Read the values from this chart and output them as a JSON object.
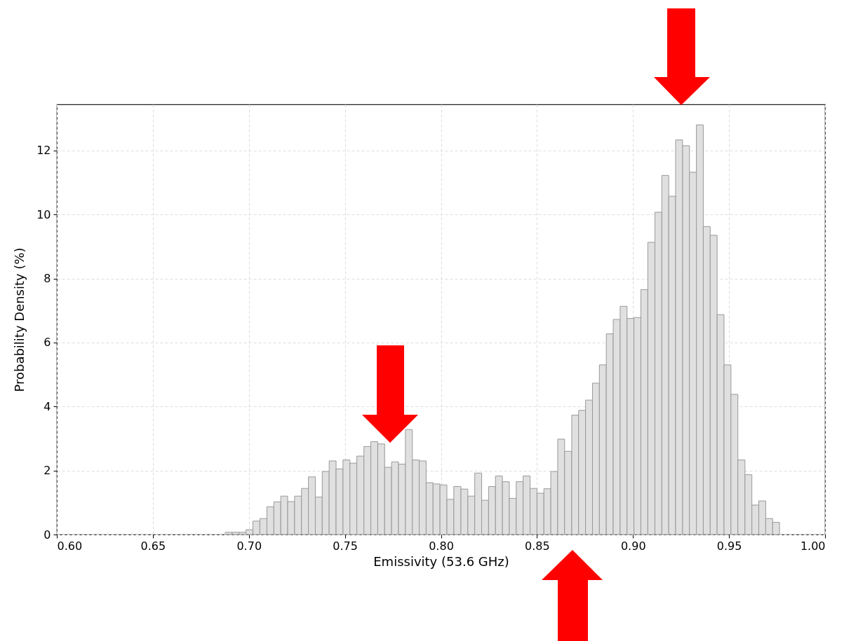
{
  "chart_data": {
    "type": "histogram",
    "xlabel": "Emissivity (53.6 GHz)",
    "ylabel": "Probability Density (%)",
    "color": "#e0e0e0",
    "bins": [
      0.6877,
      0.6913,
      0.6949,
      0.6985,
      0.7021,
      0.7057,
      0.7094,
      0.713,
      0.7166,
      0.7202,
      0.7238,
      0.7274,
      0.731,
      0.7346,
      0.7382,
      0.7418,
      0.7454,
      0.749,
      0.7526,
      0.7562,
      0.7599,
      0.7635,
      0.7671,
      0.7707,
      0.7743,
      0.7779,
      0.7815,
      0.7851,
      0.7887,
      0.7923,
      0.7959,
      0.7995,
      0.8031,
      0.8067,
      0.8104,
      0.814,
      0.8176,
      0.8212,
      0.8248,
      0.8284,
      0.832,
      0.8356,
      0.8392,
      0.8428,
      0.8464,
      0.85,
      0.8536,
      0.8572,
      0.8608,
      0.8644,
      0.8681,
      0.8717,
      0.8753,
      0.8789,
      0.8825,
      0.8861,
      0.8897,
      0.8933,
      0.8969,
      0.9005,
      0.9041,
      0.9077,
      0.9114,
      0.915,
      0.9186,
      0.9222,
      0.9258,
      0.9294,
      0.933,
      0.9366,
      0.9402,
      0.9438,
      0.9474,
      0.951,
      0.9546,
      0.9583,
      0.9619,
      0.9655,
      0.9691,
      0.9727,
      0.9763
    ],
    "values": [
      0.07,
      0.07,
      0.07,
      0.15,
      0.42,
      0.5,
      0.87,
      1.02,
      1.2,
      1.03,
      1.2,
      1.44,
      1.8,
      1.17,
      1.97,
      2.3,
      2.05,
      2.33,
      2.23,
      2.45,
      2.75,
      2.9,
      2.83,
      2.1,
      2.27,
      2.2,
      3.28,
      2.33,
      2.3,
      1.62,
      1.58,
      1.55,
      1.1,
      1.5,
      1.42,
      1.2,
      1.92,
      1.07,
      1.5,
      1.83,
      1.65,
      1.13,
      1.65,
      1.83,
      1.44,
      1.29,
      1.43,
      1.97,
      2.98,
      2.6,
      3.73,
      3.88,
      4.2,
      4.73,
      5.3,
      6.27,
      6.72,
      7.13,
      6.75,
      6.78,
      7.65,
      9.13,
      10.07,
      11.22,
      10.57,
      12.33,
      12.15,
      11.32,
      12.8,
      9.62,
      9.35,
      6.87,
      5.3,
      4.38,
      2.33,
      1.87,
      0.92,
      1.05,
      0.5,
      0.38
    ],
    "xlim": [
      0.6,
      1.0
    ],
    "xticks": [
      {
        "value": 0.6,
        "label": "0.60"
      },
      {
        "value": 0.65,
        "label": "0.65"
      },
      {
        "value": 0.7,
        "label": "0.70"
      },
      {
        "value": 0.75,
        "label": "0.75"
      },
      {
        "value": 0.8,
        "label": "0.80"
      },
      {
        "value": 0.85,
        "label": "0.85"
      },
      {
        "value": 0.9,
        "label": "0.90"
      },
      {
        "value": 0.95,
        "label": "0.95"
      },
      {
        "value": 1.0,
        "label": "1.00"
      }
    ],
    "ylim": [
      0,
      13.44
    ],
    "yticks": [
      0,
      2,
      4,
      6,
      8,
      10,
      12
    ],
    "grid": true
  }
}
